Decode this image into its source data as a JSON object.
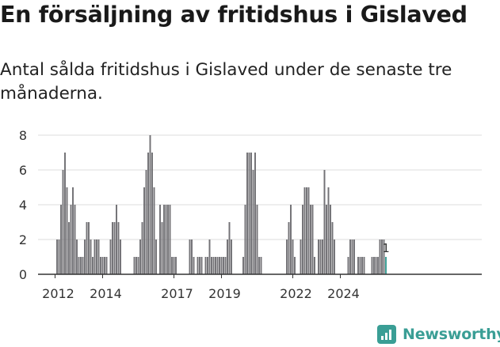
{
  "title": "En försäljning av fritidshus i Gislaved",
  "subtitle": "Antal sålda fritidshus i Gislaved under de senaste tre månaderna.",
  "brand": {
    "name": "Newsworthy",
    "icon": "newsworthy-logo-icon",
    "color": "#3a9e95"
  },
  "chart_data": {
    "type": "bar",
    "x_start": "2012-02",
    "interval": "month",
    "values": [
      2,
      2,
      4,
      6,
      7,
      5,
      3,
      4,
      5,
      4,
      2,
      1,
      1,
      1,
      2,
      3,
      3,
      2,
      1,
      2,
      2,
      2,
      1,
      1,
      1,
      1,
      0,
      2,
      3,
      3,
      4,
      3,
      2,
      0,
      0,
      0,
      0,
      0,
      0,
      1,
      1,
      1,
      2,
      3,
      5,
      6,
      7,
      8,
      7,
      5,
      2,
      0,
      4,
      3,
      4,
      4,
      4,
      4,
      1,
      1,
      1,
      0,
      0,
      0,
      0,
      0,
      0,
      2,
      2,
      1,
      0,
      1,
      1,
      1,
      0,
      1,
      1,
      2,
      1,
      1,
      1,
      1,
      1,
      1,
      1,
      1,
      2,
      3,
      2,
      0,
      0,
      0,
      0,
      0,
      1,
      4,
      7,
      7,
      7,
      6,
      7,
      4,
      1,
      1,
      0,
      0,
      0,
      0,
      0,
      0,
      0,
      0,
      0,
      0,
      0,
      0,
      2,
      3,
      4,
      2,
      1,
      0,
      0,
      2,
      4,
      5,
      5,
      5,
      4,
      4,
      1,
      0,
      2,
      2,
      2,
      6,
      4,
      5,
      4,
      3,
      2,
      0,
      0,
      0,
      0,
      0,
      0,
      1,
      2,
      2,
      2,
      0,
      1,
      1,
      1,
      1,
      0,
      0,
      0,
      1,
      1,
      1,
      1,
      2,
      2,
      2,
      1
    ],
    "highlight_last": true,
    "last_value_label": "1",
    "x_ticks": [
      "2012",
      "2014",
      "2017",
      "2019",
      "2022",
      "2024"
    ],
    "y_ticks": [
      0,
      2,
      4,
      6,
      8
    ],
    "ylim": [
      0,
      8
    ],
    "grid": true,
    "bar_color": "#737276",
    "highlight_color": "#3a9e95"
  }
}
